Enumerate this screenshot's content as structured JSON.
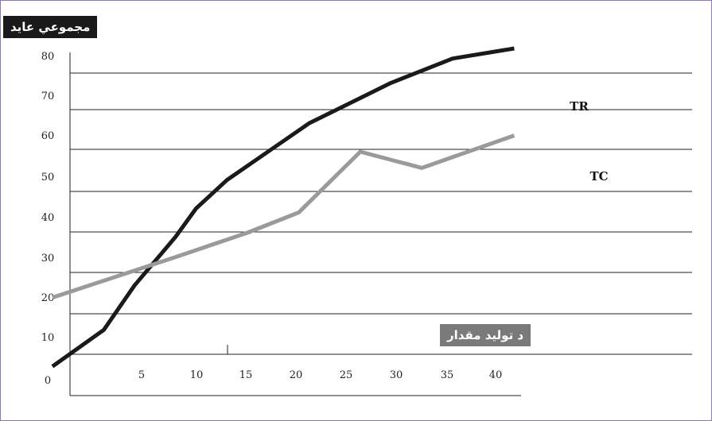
{
  "chart_data": {
    "type": "line",
    "ylabel": "مجموعي عايد",
    "xlabel": "د تولید مقدار",
    "y_ticks": [
      "0",
      "10",
      "20",
      "30",
      "40",
      "50",
      "60",
      "70",
      "80"
    ],
    "x_ticks": [
      "5",
      "10",
      "15",
      "20",
      "25",
      "30",
      "35",
      "40"
    ],
    "ylim": [
      0,
      80
    ],
    "grid": true,
    "series": [
      {
        "name": "TR",
        "color": "#1a1a1a",
        "points": [
          [
            1,
            -3
          ],
          [
            6,
            6
          ],
          [
            9,
            17
          ],
          [
            13,
            29
          ],
          [
            15,
            36
          ],
          [
            18,
            43
          ],
          [
            22,
            50
          ],
          [
            26,
            57
          ],
          [
            34,
            67
          ],
          [
            40,
            73
          ],
          [
            46,
            75.5
          ]
        ]
      },
      {
        "name": "TC",
        "color": "#9a9a9a",
        "points": [
          [
            1,
            14
          ],
          [
            13,
            24
          ],
          [
            20,
            30
          ],
          [
            25,
            35
          ],
          [
            31,
            50
          ],
          [
            37,
            46
          ],
          [
            46,
            54
          ]
        ]
      }
    ]
  }
}
